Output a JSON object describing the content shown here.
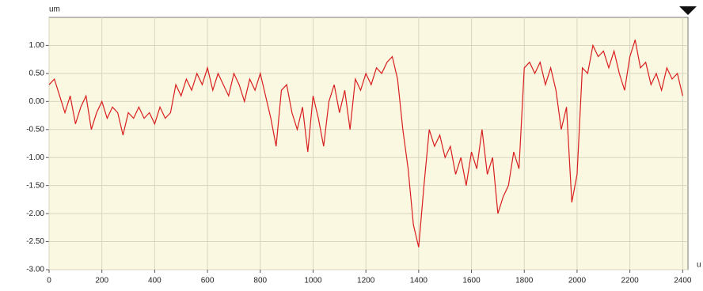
{
  "chart_data": {
    "type": "line",
    "y_label": "um",
    "x_label": "u",
    "x": [
      0,
      20,
      40,
      60,
      80,
      100,
      120,
      140,
      160,
      180,
      200,
      220,
      240,
      260,
      280,
      300,
      320,
      340,
      360,
      380,
      400,
      420,
      440,
      460,
      480,
      500,
      520,
      540,
      560,
      580,
      600,
      620,
      640,
      660,
      680,
      700,
      720,
      740,
      760,
      780,
      800,
      820,
      840,
      860,
      880,
      900,
      920,
      940,
      960,
      980,
      1000,
      1020,
      1040,
      1060,
      1080,
      1100,
      1120,
      1140,
      1160,
      1180,
      1200,
      1220,
      1240,
      1260,
      1280,
      1300,
      1320,
      1340,
      1360,
      1380,
      1400,
      1420,
      1440,
      1460,
      1480,
      1500,
      1520,
      1540,
      1560,
      1580,
      1600,
      1620,
      1640,
      1660,
      1680,
      1700,
      1720,
      1740,
      1760,
      1780,
      1800,
      1820,
      1840,
      1860,
      1880,
      1900,
      1920,
      1940,
      1960,
      1980,
      2000,
      2020,
      2040,
      2060,
      2080,
      2100,
      2120,
      2140,
      2160,
      2180,
      2200,
      2220,
      2240,
      2260,
      2280,
      2300,
      2320,
      2340,
      2360,
      2380,
      2400
    ],
    "series": [
      {
        "color": "#d81e1e",
        "values": [
          0.3,
          0.4,
          0.1,
          -0.2,
          0.1,
          -0.4,
          -0.1,
          0.1,
          -0.5,
          -0.2,
          0.0,
          -0.3,
          -0.1,
          -0.2,
          -0.6,
          -0.2,
          -0.3,
          -0.1,
          -0.3,
          -0.2,
          -0.4,
          -0.1,
          -0.3,
          -0.2,
          0.3,
          0.1,
          0.4,
          0.2,
          0.5,
          0.3,
          0.6,
          0.2,
          0.5,
          0.3,
          0.1,
          0.5,
          0.3,
          0.0,
          0.4,
          0.2,
          0.5,
          0.1,
          -0.3,
          -0.8,
          0.2,
          0.3,
          -0.2,
          -0.5,
          -0.1,
          -0.9,
          0.1,
          -0.3,
          -0.8,
          0.0,
          0.3,
          -0.2,
          0.2,
          -0.5,
          0.4,
          0.2,
          0.5,
          0.3,
          0.6,
          0.5,
          0.7,
          0.8,
          0.4,
          -0.5,
          -1.2,
          -2.2,
          -2.6,
          -1.5,
          -0.5,
          -0.8,
          -0.6,
          -1.0,
          -0.8,
          -1.3,
          -1.0,
          -1.5,
          -0.9,
          -1.2,
          -0.5,
          -1.3,
          -1.0,
          -2.0,
          -1.7,
          -1.5,
          -0.9,
          -1.2,
          0.6,
          0.7,
          0.5,
          0.7,
          0.3,
          0.6,
          0.2,
          -0.5,
          -0.1,
          -1.8,
          -1.3,
          0.6,
          0.5,
          1.0,
          0.8,
          0.9,
          0.6,
          0.9,
          0.5,
          0.2,
          0.8,
          1.1,
          0.6,
          0.7,
          0.3,
          0.5,
          0.2,
          0.6,
          0.4,
          0.5,
          0.1
        ]
      }
    ],
    "xlim": [
      0,
      2420
    ],
    "ylim": [
      -3.0,
      1.5
    ],
    "xticks": [
      0,
      200,
      400,
      600,
      800,
      1000,
      1200,
      1400,
      1600,
      1800,
      2000,
      2200,
      2400
    ],
    "yticks": [
      {
        "value": 1.0,
        "label": "1.00"
      },
      {
        "value": 0.5,
        "label": "0.50"
      },
      {
        "value": 0.0,
        "label": "0.00"
      },
      {
        "value": -0.5,
        "label": "-0.50"
      },
      {
        "value": -1.0,
        "label": "-1.00"
      },
      {
        "value": -1.5,
        "label": "-1.50"
      },
      {
        "value": -2.0,
        "label": "-2.00"
      },
      {
        "value": -2.5,
        "label": "-2.50"
      },
      {
        "value": -3.0,
        "label": "-3.00"
      }
    ],
    "grid": true
  }
}
